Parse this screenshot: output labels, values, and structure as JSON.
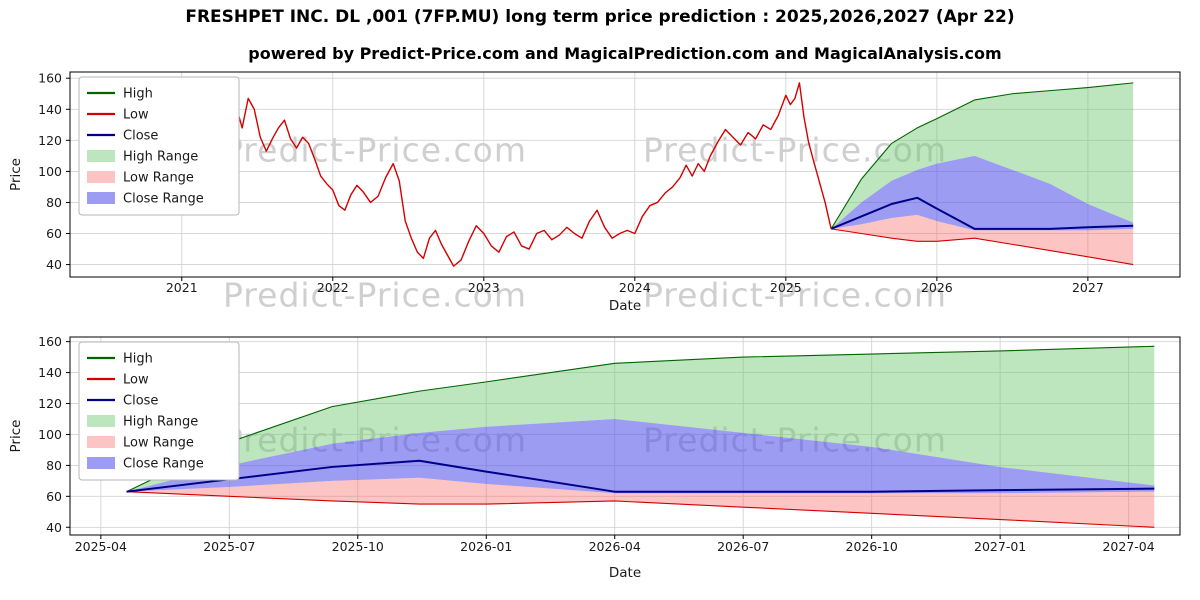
{
  "title": "FRESHPET INC. DL ,001 (7FP.MU) long term price prediction : 2025,2026,2027 (Apr 22)",
  "subtitle": "powered by Predict-Price.com and MagicalPrediction.com and MagicalAnalysis.com",
  "watermark": "Predict-Price.com",
  "colors": {
    "high_line": "#006400",
    "low_line": "#d40000",
    "close_line": "#00008b",
    "historical_line": "#d40000",
    "high_range_fill": "rgba(110,200,110,0.45)",
    "low_range_fill": "rgba(250,100,100,0.38)",
    "close_range_fill": "rgba(85,85,235,0.58)",
    "grid": "#d3d3d3",
    "watermark": "rgba(128,128,128,0.38)"
  },
  "legend": [
    {
      "label": "High",
      "swatch": "line",
      "color": "high_line"
    },
    {
      "label": "Low",
      "swatch": "line",
      "color": "low_line"
    },
    {
      "label": "Close",
      "swatch": "line",
      "color": "close_line"
    },
    {
      "label": "High Range",
      "swatch": "patch",
      "color": "high_range_fill"
    },
    {
      "label": "Low Range",
      "swatch": "patch",
      "color": "low_range_fill"
    },
    {
      "label": "Close Range",
      "swatch": "patch",
      "color": "close_range_fill"
    }
  ],
  "chart_data": [
    {
      "type": "line",
      "name": "long-term-history-and-forecast",
      "xlabel": "Date",
      "ylabel": "Price",
      "xlim": [
        2020.26,
        2027.61
      ],
      "ylim": [
        32,
        164
      ],
      "yticks": [
        40,
        60,
        80,
        100,
        120,
        140,
        160
      ],
      "xticks": {
        "values": [
          2021,
          2022,
          2023,
          2024,
          2025,
          2026,
          2027
        ],
        "labels": [
          "2021",
          "2022",
          "2023",
          "2024",
          "2025",
          "2026",
          "2027"
        ]
      },
      "grid": true,
      "legend_position": "upper left",
      "historical": {
        "x": [
          2020.5,
          2020.55,
          2020.6,
          2020.65,
          2020.7,
          2020.75,
          2020.8,
          2020.85,
          2020.9,
          2020.95,
          2021.0,
          2021.04,
          2021.08,
          2021.12,
          2021.15,
          2021.18,
          2021.22,
          2021.25,
          2021.28,
          2021.32,
          2021.36,
          2021.4,
          2021.44,
          2021.48,
          2021.52,
          2021.56,
          2021.6,
          2021.64,
          2021.68,
          2021.72,
          2021.76,
          2021.8,
          2021.84,
          2021.88,
          2021.92,
          2021.96,
          2022.0,
          2022.04,
          2022.08,
          2022.12,
          2022.16,
          2022.2,
          2022.25,
          2022.3,
          2022.35,
          2022.4,
          2022.44,
          2022.48,
          2022.52,
          2022.56,
          2022.6,
          2022.64,
          2022.68,
          2022.72,
          2022.76,
          2022.8,
          2022.85,
          2022.9,
          2022.95,
          2023.0,
          2023.05,
          2023.1,
          2023.15,
          2023.2,
          2023.25,
          2023.3,
          2023.35,
          2023.4,
          2023.45,
          2023.5,
          2023.55,
          2023.6,
          2023.65,
          2023.7,
          2023.75,
          2023.8,
          2023.85,
          2023.9,
          2023.95,
          2024.0,
          2024.05,
          2024.1,
          2024.15,
          2024.2,
          2024.25,
          2024.3,
          2024.34,
          2024.38,
          2024.42,
          2024.46,
          2024.5,
          2024.55,
          2024.6,
          2024.65,
          2024.7,
          2024.75,
          2024.8,
          2024.85,
          2024.9,
          2024.95,
          2025.0,
          2025.03,
          2025.06,
          2025.09,
          2025.12,
          2025.15,
          2025.18,
          2025.22,
          2025.26,
          2025.3
        ],
        "price": [
          120,
          116,
          124,
          131,
          125,
          113,
          119,
          126,
          123,
          129,
          134,
          141,
          136,
          149,
          152,
          145,
          151,
          143,
          147,
          138,
          142,
          128,
          147,
          140,
          122,
          113,
          121,
          128,
          133,
          121,
          115,
          122,
          118,
          108,
          97,
          92,
          88,
          78,
          75,
          85,
          91,
          87,
          80,
          84,
          96,
          105,
          94,
          68,
          57,
          48,
          44,
          57,
          62,
          53,
          46,
          39,
          43,
          55,
          65,
          60,
          52,
          48,
          58,
          61,
          52,
          50,
          60,
          62,
          56,
          59,
          64,
          60,
          57,
          68,
          75,
          64,
          57,
          60,
          62,
          60,
          71,
          78,
          80,
          86,
          90,
          96,
          104,
          97,
          105,
          100,
          110,
          119,
          127,
          122,
          117,
          125,
          121,
          130,
          127,
          136,
          149,
          143,
          147,
          157,
          135,
          119,
          108,
          94,
          80,
          63
        ]
      },
      "prediction": {
        "x": [
          2025.3,
          2025.5,
          2025.7,
          2025.87,
          2026.0,
          2026.25,
          2026.5,
          2026.75,
          2027.0,
          2027.3
        ],
        "close": [
          63,
          71,
          79,
          83,
          76,
          63,
          63,
          63,
          64,
          65
        ],
        "close_upper": [
          63,
          80,
          94,
          101,
          105,
          110,
          101,
          92,
          79,
          67
        ],
        "close_lower": [
          63,
          66,
          70,
          72,
          68,
          62,
          62,
          62,
          62,
          63
        ],
        "high": [
          63,
          95,
          118,
          128,
          134,
          146,
          150,
          152,
          154,
          157
        ],
        "low": [
          63,
          60,
          57,
          55,
          55,
          57,
          53,
          49,
          45,
          40
        ]
      }
    },
    {
      "type": "area",
      "name": "forecast-detail-2025-2027",
      "xlabel": "Date",
      "ylabel": "Price",
      "xlim": [
        2025.19,
        2027.35
      ],
      "ylim": [
        35,
        163
      ],
      "yticks": [
        40,
        60,
        80,
        100,
        120,
        140,
        160
      ],
      "xticks": {
        "values": [
          2025.25,
          2025.5,
          2025.75,
          2026.0,
          2026.25,
          2026.5,
          2026.75,
          2027.0,
          2027.25
        ],
        "labels": [
          "2025-04",
          "2025-07",
          "2025-10",
          "2026-01",
          "2026-04",
          "2026-07",
          "2026-10",
          "2027-01",
          "2027-04"
        ]
      },
      "grid": true,
      "legend_position": "upper left",
      "prediction": {
        "x": [
          2025.3,
          2025.5,
          2025.7,
          2025.87,
          2026.0,
          2026.25,
          2026.5,
          2026.75,
          2027.0,
          2027.3
        ],
        "close": [
          63,
          71,
          79,
          83,
          76,
          63,
          63,
          63,
          64,
          65
        ],
        "close_upper": [
          63,
          80,
          94,
          101,
          105,
          110,
          101,
          92,
          79,
          67
        ],
        "close_lower": [
          63,
          66,
          70,
          72,
          68,
          62,
          62,
          62,
          62,
          63
        ],
        "high": [
          63,
          95,
          118,
          128,
          134,
          146,
          150,
          152,
          154,
          157
        ],
        "low": [
          63,
          60,
          57,
          55,
          55,
          57,
          53,
          49,
          45,
          40
        ]
      }
    }
  ]
}
